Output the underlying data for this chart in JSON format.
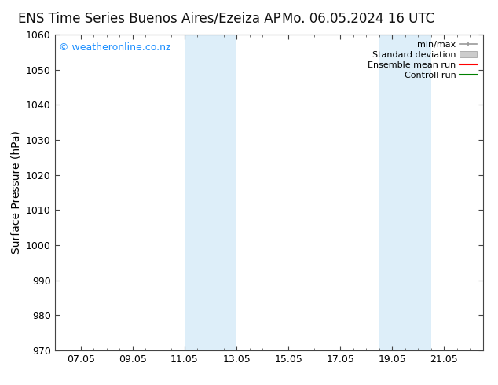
{
  "title_left": "ENS Time Series Buenos Aires/Ezeiza AP",
  "title_right": "Mo. 06.05.2024 16 UTC",
  "ylabel": "Surface Pressure (hPa)",
  "ylim": [
    970,
    1060
  ],
  "yticks": [
    970,
    980,
    990,
    1000,
    1010,
    1020,
    1030,
    1040,
    1050,
    1060
  ],
  "xtick_labels": [
    "07.05",
    "09.05",
    "11.05",
    "13.05",
    "15.05",
    "17.05",
    "19.05",
    "21.05"
  ],
  "xtick_positions": [
    7.0,
    9.0,
    11.0,
    13.0,
    15.0,
    17.0,
    19.0,
    21.0
  ],
  "xlim": [
    6.0,
    22.5
  ],
  "shaded_bands": [
    {
      "x_start": 11.0,
      "x_end": 13.0,
      "color": "#ddeef9"
    },
    {
      "x_start": 18.5,
      "x_end": 20.5,
      "color": "#ddeef9"
    }
  ],
  "watermark": "© weatheronline.co.nz",
  "watermark_color": "#1e90ff",
  "legend_items": [
    {
      "label": "min/max",
      "color": "#999999",
      "lw": 1.2
    },
    {
      "label": "Standard deviation",
      "color": "#cccccc",
      "lw": 6
    },
    {
      "label": "Ensemble mean run",
      "color": "#ff0000",
      "lw": 1.5
    },
    {
      "label": "Controll run",
      "color": "#008000",
      "lw": 1.5
    }
  ],
  "bg_color": "#ffffff",
  "plot_bg_color": "#ffffff",
  "title_fontsize": 12,
  "axis_fontsize": 10,
  "tick_fontsize": 9,
  "legend_fontsize": 8
}
